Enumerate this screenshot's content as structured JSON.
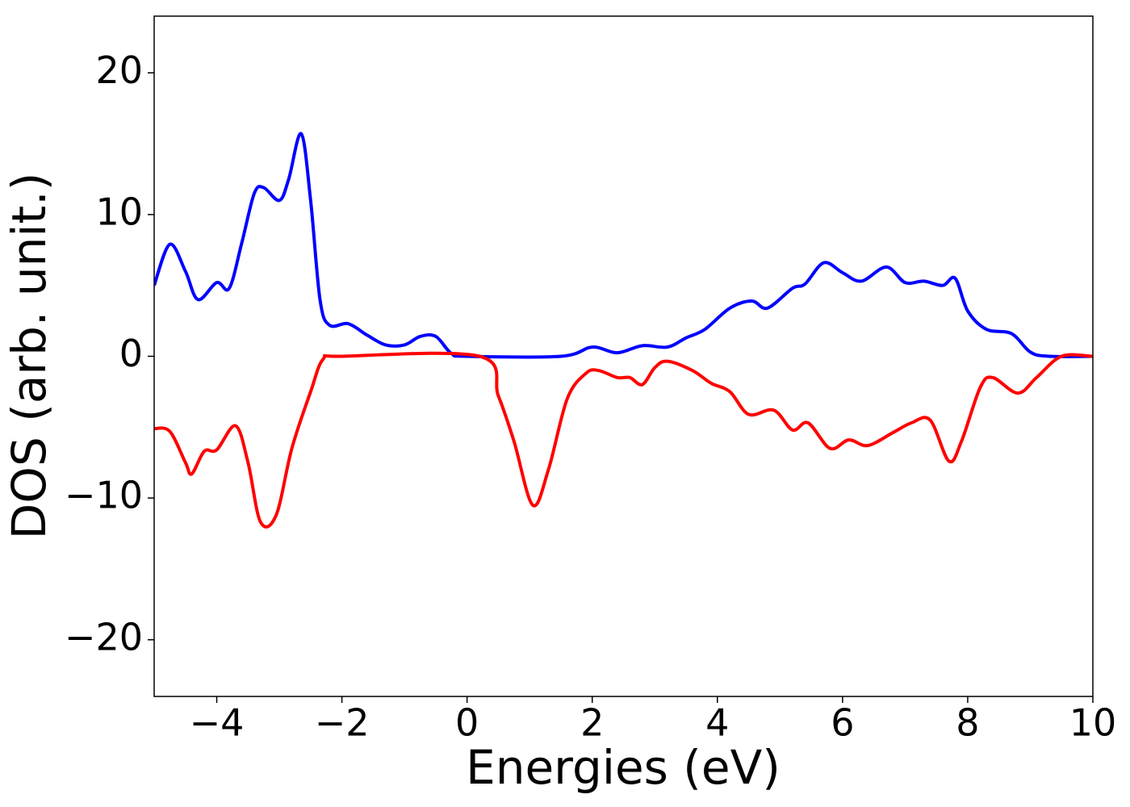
{
  "chart_data": {
    "type": "line",
    "x_label": "Energies (eV)",
    "y_label": "DOS (arb. unit.)",
    "xlim": [
      -5,
      10
    ],
    "ylim": [
      -24,
      24
    ],
    "xticks": [
      {
        "value": -4,
        "label": "−4"
      },
      {
        "value": -2,
        "label": "−2"
      },
      0,
      2,
      4,
      6,
      8,
      10
    ],
    "yticks": [
      {
        "value": -20,
        "label": "−20"
      },
      {
        "value": -10,
        "label": "−10"
      },
      0,
      10,
      20
    ],
    "grid": false,
    "series": [
      {
        "color": "#0000ff",
        "x": [
          -5,
          -4.75,
          -4.5,
          -4.3,
          -4.0,
          -3.8,
          -3.6,
          -3.4,
          -3.25,
          -3.0,
          -2.85,
          -2.65,
          -2.5,
          -2.35,
          -2.2,
          -1.9,
          -1.6,
          -1.3,
          -1.0,
          -0.75,
          -0.5,
          -0.25,
          0,
          1.5,
          2.0,
          2.4,
          2.8,
          3.2,
          3.5,
          3.8,
          4.2,
          4.55,
          4.8,
          5.2,
          5.4,
          5.7,
          6.0,
          6.3,
          6.7,
          7.0,
          7.3,
          7.6,
          7.8,
          8.0,
          8.3,
          8.7,
          9.0,
          9.3,
          10
        ],
        "values": [
          5.0,
          7.9,
          6.0,
          4.0,
          5.2,
          4.8,
          8.0,
          11.5,
          11.9,
          11.0,
          12.5,
          15.7,
          11.0,
          4.0,
          2.2,
          2.3,
          1.5,
          0.8,
          0.8,
          1.4,
          1.4,
          0.2,
          0,
          0,
          0.65,
          0.25,
          0.75,
          0.65,
          1.3,
          1.9,
          3.4,
          3.9,
          3.4,
          4.8,
          5.1,
          6.6,
          5.9,
          5.3,
          6.3,
          5.2,
          5.3,
          5.0,
          5.5,
          3.2,
          1.9,
          1.6,
          0.3,
          0,
          0
        ]
      },
      {
        "color": "#ff0000",
        "x": [
          -5,
          -4.75,
          -4.5,
          -4.4,
          -4.2,
          -4.0,
          -3.7,
          -3.5,
          -3.3,
          -3.05,
          -2.8,
          -2.5,
          -2.3,
          -2.0,
          0.2,
          0.5,
          0.75,
          1.05,
          1.3,
          1.6,
          1.9,
          2.1,
          2.4,
          2.6,
          2.8,
          3.0,
          3.2,
          3.6,
          3.9,
          4.2,
          4.5,
          4.9,
          5.2,
          5.45,
          5.8,
          6.1,
          6.4,
          6.8,
          7.1,
          7.4,
          7.7,
          7.9,
          8.2,
          8.4,
          8.8,
          9.1,
          9.5,
          10
        ],
        "values": [
          -5.1,
          -5.3,
          -7.5,
          -8.3,
          -6.7,
          -6.6,
          -4.9,
          -7.5,
          -11.7,
          -11.2,
          -6.5,
          -2.5,
          -0.2,
          0,
          0,
          -2.8,
          -6.0,
          -10.5,
          -8.0,
          -3.0,
          -1.2,
          -1.0,
          -1.5,
          -1.5,
          -2.0,
          -0.8,
          -0.35,
          -1.0,
          -1.9,
          -2.5,
          -4.1,
          -3.8,
          -5.2,
          -4.7,
          -6.5,
          -5.9,
          -6.3,
          -5.4,
          -4.7,
          -4.5,
          -7.4,
          -6.0,
          -2.2,
          -1.5,
          -2.6,
          -1.5,
          0,
          0
        ]
      }
    ]
  }
}
